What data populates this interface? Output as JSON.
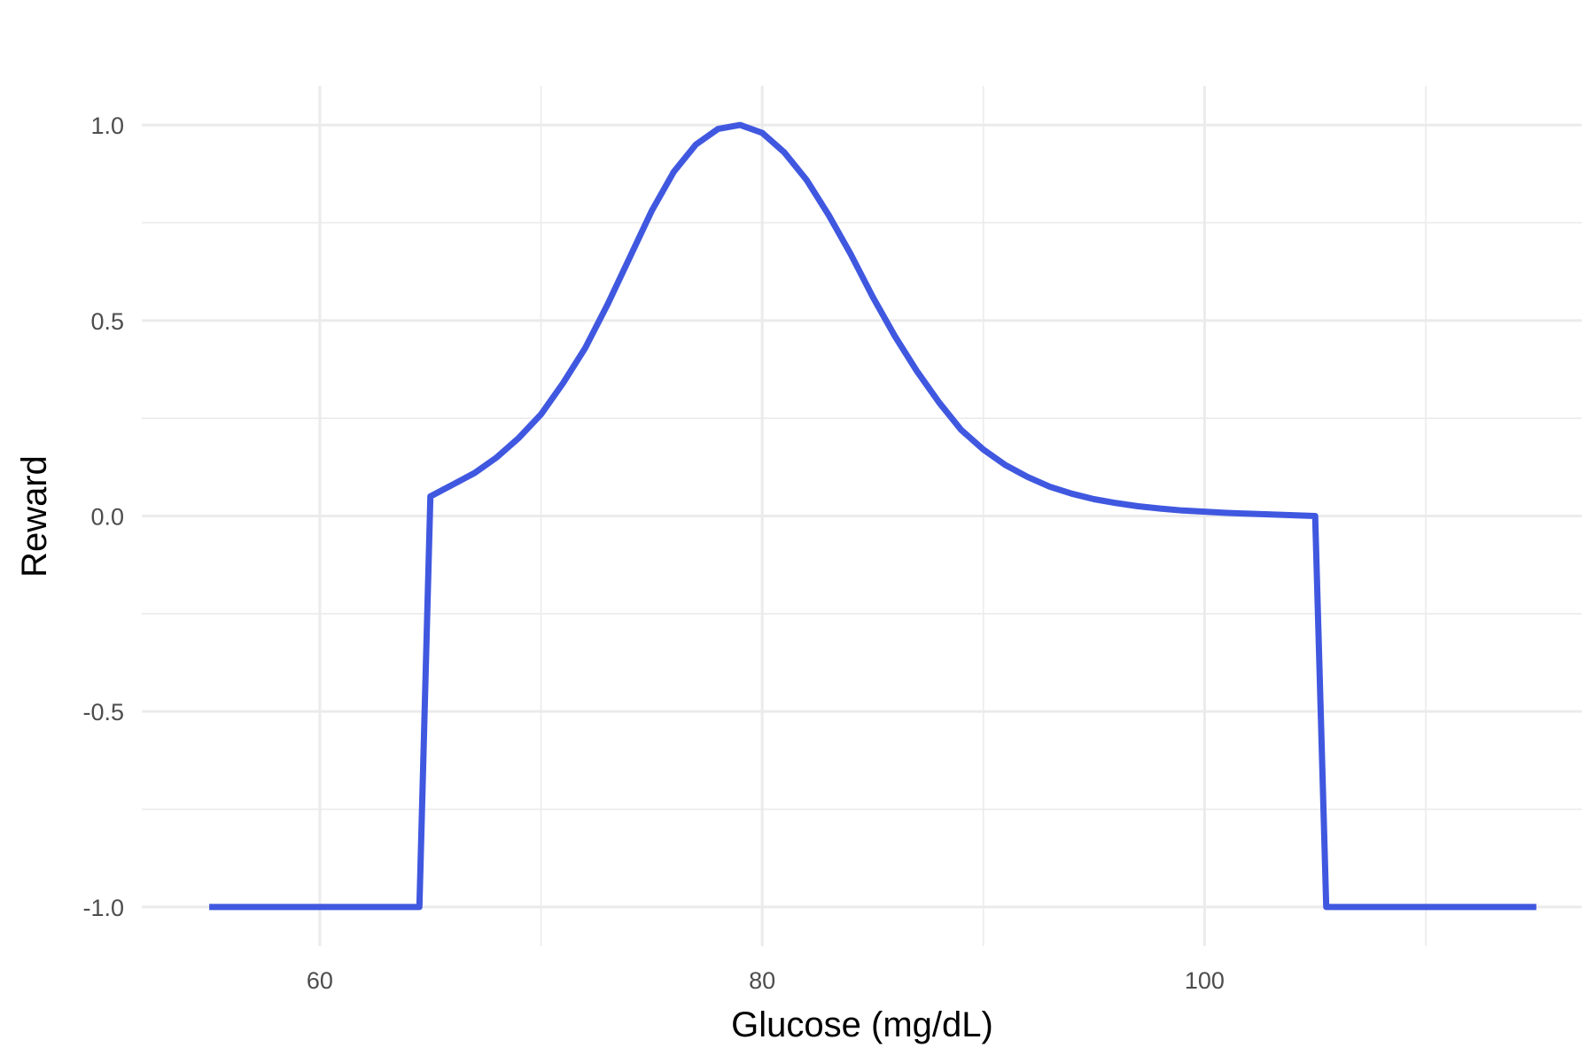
{
  "chart_data": {
    "type": "line",
    "title": "",
    "xlabel": "Glucose (mg/dL)",
    "ylabel": "Reward",
    "xlim": [
      51.95,
      117.05
    ],
    "ylim": [
      -1.1,
      1.1
    ],
    "x_ticks": [
      60,
      80,
      100
    ],
    "x_tick_labels": [
      "60",
      "80",
      "100"
    ],
    "x_minor_ticks": [
      70,
      90,
      110
    ],
    "y_ticks": [
      -1.0,
      -0.5,
      0.0,
      0.5,
      1.0
    ],
    "y_tick_labels": [
      "-1.0",
      "-0.5",
      "0.0",
      "0.5",
      "1.0"
    ],
    "y_minor_ticks": [
      -0.75,
      -0.25,
      0.25,
      0.75
    ],
    "grid": true,
    "legend": "none",
    "color": "#4058e0",
    "series": [
      {
        "x": [
          55,
          60,
          64.5,
          65,
          66,
          67,
          68,
          69,
          70,
          71,
          72,
          73,
          74,
          75,
          76,
          77,
          78,
          79,
          80,
          81,
          82,
          83,
          84,
          85,
          86,
          87,
          88,
          89,
          90,
          91,
          92,
          93,
          94,
          95,
          96,
          97,
          98,
          99,
          100,
          101,
          102,
          103,
          104,
          105,
          105.5,
          110,
          115
        ],
        "y": [
          -1.0,
          -1.0,
          -1.0,
          0.05,
          0.08,
          0.11,
          0.15,
          0.2,
          0.26,
          0.34,
          0.43,
          0.54,
          0.66,
          0.78,
          0.88,
          0.95,
          0.99,
          1.0,
          0.98,
          0.93,
          0.86,
          0.77,
          0.67,
          0.56,
          0.46,
          0.37,
          0.29,
          0.22,
          0.17,
          0.13,
          0.1,
          0.075,
          0.057,
          0.043,
          0.033,
          0.025,
          0.019,
          0.014,
          0.011,
          0.008,
          0.006,
          0.004,
          0.002,
          0.0,
          -1.0,
          -1.0,
          -1.0
        ]
      }
    ]
  }
}
